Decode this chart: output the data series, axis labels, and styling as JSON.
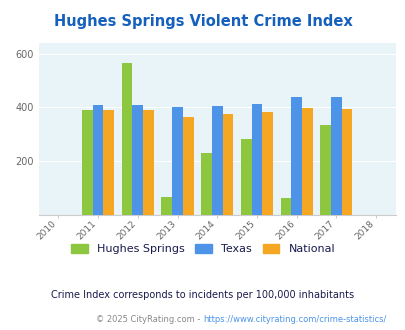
{
  "title": "Hughes Springs Violent Crime Index",
  "years": [
    2010,
    2011,
    2012,
    2013,
    2014,
    2015,
    2016,
    2017,
    2018
  ],
  "bar_years": [
    2011,
    2012,
    2013,
    2014,
    2015,
    2016,
    2017
  ],
  "hughes_springs": [
    390,
    565,
    65,
    230,
    283,
    62,
    333
  ],
  "texas": [
    410,
    408,
    400,
    405,
    413,
    437,
    440
  ],
  "national": [
    388,
    388,
    363,
    373,
    383,
    398,
    395
  ],
  "hughes_color": "#8dc63f",
  "texas_color": "#4d94e8",
  "national_color": "#f5a623",
  "bg_color": "#e8f4f8",
  "title_color": "#1560bd",
  "legend_label_color": "#1a1a4e",
  "note_color": "#1a1a4e",
  "credit_color": "#888888",
  "credit_link_color": "#4d94e8",
  "ylim": [
    0,
    640
  ],
  "yticks": [
    0,
    200,
    400,
    600
  ],
  "xlim": [
    2009.5,
    2018.5
  ],
  "bar_width": 0.27,
  "subtitle": "Crime Index corresponds to incidents per 100,000 inhabitants",
  "credit_plain": "© 2025 CityRating.com - ",
  "credit_link": "https://www.cityrating.com/crime-statistics/"
}
